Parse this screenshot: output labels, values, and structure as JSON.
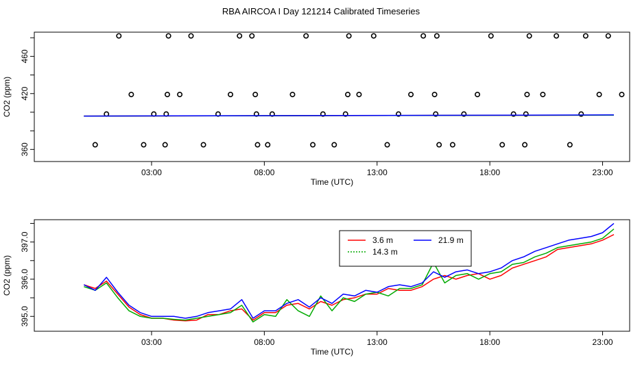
{
  "title": "RBA AIRCOA I  Day 121214  Calibrated Timeseries",
  "chart_data": [
    {
      "type": "scatter",
      "xlabel": "Time (UTC)",
      "ylabel": "CO2 (ppm)",
      "xlim": [
        -2.2,
        24.2
      ],
      "ylim": [
        347,
        486
      ],
      "xticks": [
        3,
        8,
        13,
        18,
        23
      ],
      "xtick_labels": [
        "03:00",
        "08:00",
        "13:00",
        "18:00",
        "23:00"
      ],
      "yticks": [
        360,
        380,
        400,
        420,
        440,
        460,
        480
      ],
      "ytick_labels": [
        "360",
        "",
        "",
        "420",
        "",
        "460",
        ""
      ],
      "series": [
        {
          "name": "points",
          "marker": "open-circle",
          "x": [
            0.5,
            1.0,
            1.55,
            2.1,
            2.65,
            3.1,
            3.6,
            3.65,
            3.7,
            3.75,
            4.25,
            4.75,
            5.3,
            5.95,
            6.5,
            6.9,
            7.45,
            7.6,
            7.65,
            7.7,
            8.15,
            8.35,
            9.25,
            9.85,
            10.15,
            10.6,
            11.1,
            11.6,
            11.7,
            11.75,
            12.2,
            12.85,
            13.45,
            13.95,
            14.5,
            15.05,
            15.55,
            15.6,
            15.65,
            15.75,
            16.35,
            16.85,
            17.45,
            18.05,
            18.55,
            19.05,
            19.55,
            19.6,
            19.65,
            19.75,
            20.35,
            20.95,
            21.55,
            22.05,
            22.25,
            22.85,
            23.25,
            23.85
          ],
          "y": [
            365,
            398,
            482,
            419,
            365,
            398,
            365,
            398,
            419,
            482,
            419,
            482,
            365,
            398,
            419,
            482,
            482,
            419,
            398,
            365,
            365,
            398,
            419,
            482,
            365,
            398,
            365,
            398,
            419,
            482,
            419,
            482,
            365,
            398,
            419,
            482,
            419,
            398,
            482,
            365,
            365,
            398,
            419,
            482,
            365,
            398,
            365,
            398,
            419,
            482,
            419,
            482,
            365,
            398,
            482,
            419,
            482,
            419
          ]
        },
        {
          "name": "3.6 m",
          "color": "#ff0000",
          "x": [
            0,
            23.5
          ],
          "y": [
            395.8,
            396.9
          ]
        },
        {
          "name": "14.3 m",
          "color": "#00aa00",
          "x": [
            0,
            23.5
          ],
          "y": [
            395.8,
            396.9
          ]
        },
        {
          "name": "21.9 m",
          "color": "#0000ff",
          "x": [
            0,
            23.5
          ],
          "y": [
            395.8,
            397.1
          ]
        }
      ]
    },
    {
      "type": "line",
      "xlabel": "Time (UTC)",
      "ylabel": "CO2 (ppm)",
      "xlim": [
        -2.2,
        24.2
      ],
      "ylim": [
        394.6,
        397.6
      ],
      "xticks": [
        3,
        8,
        13,
        18,
        23
      ],
      "xtick_labels": [
        "03:00",
        "08:00",
        "13:00",
        "18:00",
        "23:00"
      ],
      "yticks": [
        395.0,
        395.5,
        396.0,
        396.5,
        397.0,
        397.5
      ],
      "ytick_labels": [
        "395.0",
        "",
        "396.0",
        "",
        "397.0",
        ""
      ],
      "legend": {
        "position": "top-right",
        "entries": [
          {
            "label": "3.6 m",
            "color": "#ff0000",
            "dash": "solid"
          },
          {
            "label": "14.3 m",
            "color": "#00aa00",
            "dash": "dotted"
          },
          {
            "label": "21.9 m",
            "color": "#0000ff",
            "dash": "solid"
          }
        ]
      },
      "series": [
        {
          "name": "3.6 m",
          "color": "#ff0000",
          "x": [
            0,
            0.5,
            1.0,
            1.5,
            2.0,
            2.5,
            3.0,
            3.5,
            4.0,
            4.5,
            5.0,
            5.5,
            6.0,
            6.5,
            7.0,
            7.5,
            8.0,
            8.5,
            9.0,
            9.5,
            10.0,
            10.5,
            11.0,
            11.5,
            12.0,
            12.5,
            13.0,
            13.5,
            14.0,
            14.5,
            15.0,
            15.5,
            16.0,
            16.5,
            17.0,
            17.5,
            18.0,
            18.5,
            19.0,
            19.5,
            20.0,
            20.5,
            21.0,
            21.5,
            22.0,
            22.5,
            23.0,
            23.5
          ],
          "y": [
            395.85,
            395.75,
            395.95,
            395.6,
            395.25,
            395.05,
            394.95,
            394.95,
            394.9,
            394.88,
            394.9,
            395.05,
            395.05,
            395.15,
            395.2,
            394.9,
            395.1,
            395.1,
            395.3,
            395.35,
            395.2,
            395.4,
            395.3,
            395.45,
            395.5,
            395.6,
            395.6,
            395.75,
            395.7,
            395.7,
            395.8,
            396.0,
            396.1,
            396.0,
            396.1,
            396.15,
            396.0,
            396.1,
            396.3,
            396.4,
            396.5,
            396.6,
            396.8,
            396.85,
            396.9,
            396.95,
            397.05,
            397.2
          ]
        },
        {
          "name": "14.3 m",
          "color": "#00aa00",
          "x": [
            0,
            0.5,
            1.0,
            1.5,
            2.0,
            2.5,
            3.0,
            3.5,
            4.0,
            4.5,
            5.0,
            5.5,
            6.0,
            6.5,
            7.0,
            7.5,
            8.0,
            8.5,
            9.0,
            9.5,
            10.0,
            10.5,
            11.0,
            11.5,
            12.0,
            12.5,
            13.0,
            13.5,
            14.0,
            14.5,
            15.0,
            15.5,
            16.0,
            16.5,
            17.0,
            17.5,
            18.0,
            18.5,
            19.0,
            19.5,
            20.0,
            20.5,
            21.0,
            21.5,
            22.0,
            22.5,
            23.0,
            23.5
          ],
          "y": [
            395.8,
            395.7,
            395.9,
            395.5,
            395.15,
            395.0,
            394.95,
            394.95,
            394.92,
            394.9,
            394.95,
            395.0,
            395.05,
            395.1,
            395.3,
            394.85,
            395.05,
            395.0,
            395.45,
            395.15,
            395.0,
            395.55,
            395.15,
            395.5,
            395.4,
            395.6,
            395.65,
            395.55,
            395.75,
            395.75,
            395.85,
            396.45,
            395.9,
            396.1,
            396.15,
            396.0,
            396.15,
            396.2,
            396.4,
            396.45,
            396.6,
            396.7,
            396.85,
            396.9,
            396.95,
            397.0,
            397.1,
            397.35
          ]
        },
        {
          "name": "21.9 m",
          "color": "#0000ff",
          "x": [
            0,
            0.5,
            1.0,
            1.5,
            2.0,
            2.5,
            3.0,
            3.5,
            4.0,
            4.5,
            5.0,
            5.5,
            6.0,
            6.5,
            7.0,
            7.5,
            8.0,
            8.5,
            9.0,
            9.5,
            10.0,
            10.5,
            11.0,
            11.5,
            12.0,
            12.5,
            13.0,
            13.5,
            14.0,
            14.5,
            15.0,
            15.5,
            16.0,
            16.5,
            17.0,
            17.5,
            18.0,
            18.5,
            19.0,
            19.5,
            20.0,
            20.5,
            21.0,
            21.5,
            22.0,
            22.5,
            23.0,
            23.5
          ],
          "y": [
            395.85,
            395.7,
            396.05,
            395.65,
            395.3,
            395.1,
            395.0,
            395.0,
            395.0,
            394.95,
            395.0,
            395.1,
            395.15,
            395.2,
            395.45,
            394.95,
            395.15,
            395.15,
            395.35,
            395.45,
            395.25,
            395.5,
            395.35,
            395.6,
            395.55,
            395.7,
            395.65,
            395.8,
            395.85,
            395.8,
            395.9,
            396.2,
            396.05,
            396.2,
            396.25,
            396.15,
            396.2,
            396.3,
            396.5,
            396.6,
            396.75,
            396.85,
            396.95,
            397.05,
            397.1,
            397.15,
            397.25,
            397.5
          ]
        }
      ]
    }
  ]
}
